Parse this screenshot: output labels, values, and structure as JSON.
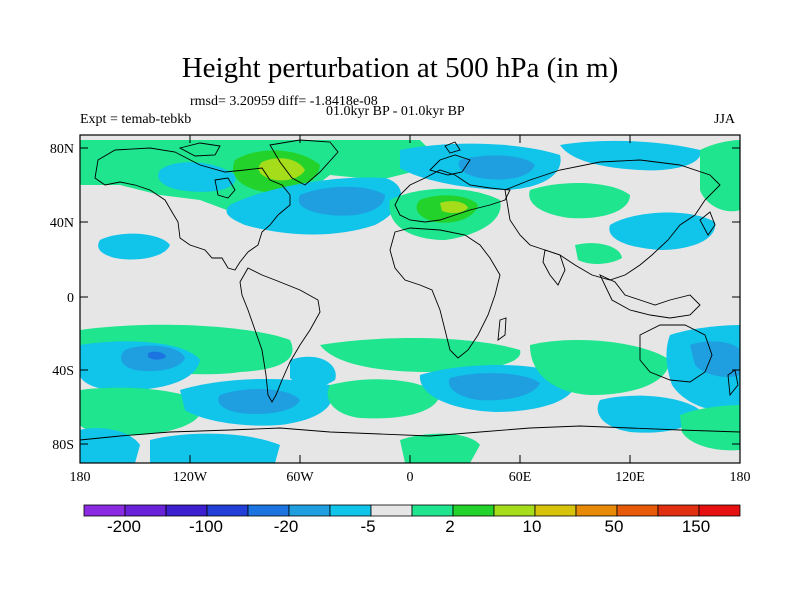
{
  "title": "Height perturbation at 500 hPa (in m)",
  "stats": "rmsd= 3.20959 diff= -1.8418e-08",
  "left_label": "Expt = temab-tebkb",
  "center_label": "01.0kyr BP - 01.0kyr BP",
  "right_label": "JJA",
  "lat_ticks": [
    "80N",
    "40N",
    "0",
    "40S",
    "80S"
  ],
  "lon_ticks": [
    "180",
    "120W",
    "60W",
    "0",
    "60E",
    "120E",
    "180"
  ],
  "colorbar": {
    "colors": [
      "#8a2be2",
      "#6a22d8",
      "#3d1fcf",
      "#2240d8",
      "#1c74e0",
      "#1f9fe0",
      "#10c4ea",
      "#e6e6e6",
      "#1ee58e",
      "#23d22a",
      "#a5dd1a",
      "#d8c30c",
      "#e68a08",
      "#e65a08",
      "#e0300f",
      "#e61010"
    ],
    "labels": [
      "-200",
      "-100",
      "-20",
      "-5",
      "2",
      "10",
      "50",
      "150"
    ]
  },
  "map_colors": {
    "ocean_fill": "#e6e6e6",
    "light_blue": "#10c4ea",
    "mid_blue": "#1f9fe0",
    "dark_blue": "#1c74e0",
    "green": "#1ee58e",
    "green_dark": "#23d22a",
    "yellow_green": "#a5dd1a",
    "coast": "#000000"
  }
}
